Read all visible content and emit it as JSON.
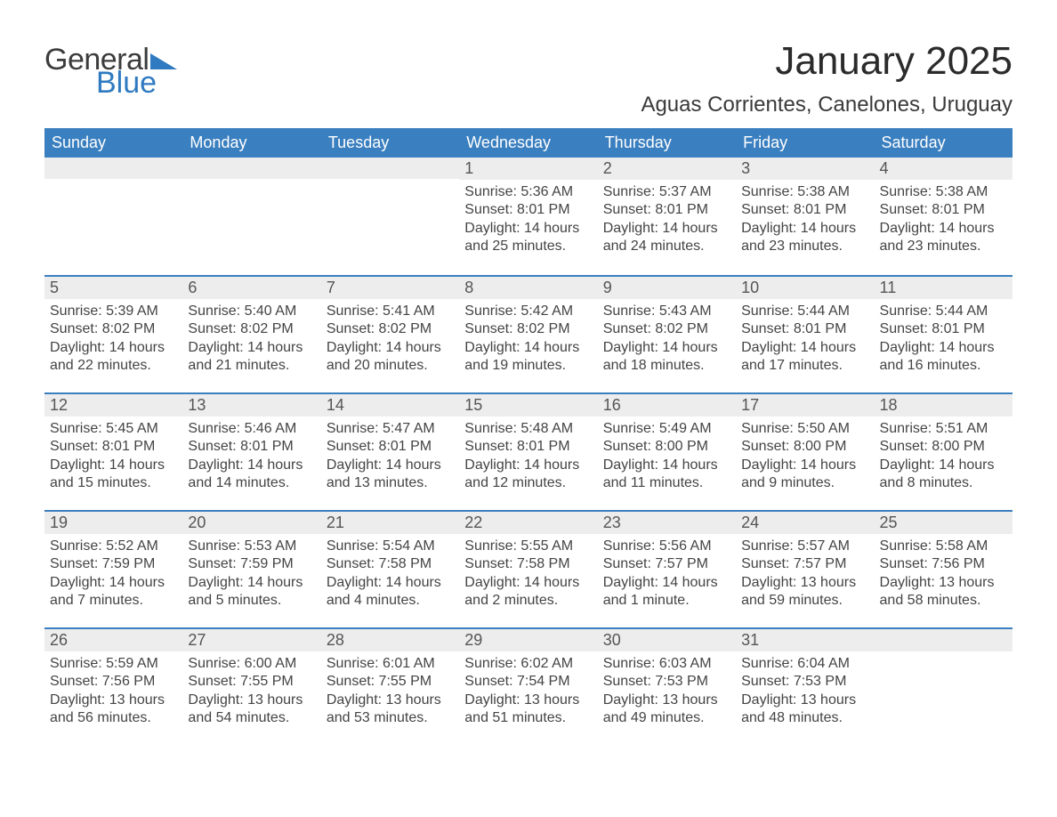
{
  "logo": {
    "word1": "General",
    "word2": "Blue"
  },
  "header": {
    "month_title": "January 2025",
    "location": "Aguas Corrientes, Canelones, Uruguay"
  },
  "colors": {
    "brand_blue": "#2f7ac0",
    "header_blue": "#3a7fbf",
    "row_gray": "#ededed",
    "border_blue": "#3a7fbf",
    "background": "#ffffff",
    "text_dark": "#333333"
  },
  "typography": {
    "month_title_fontsize": 44,
    "location_fontsize": 24,
    "dayhead_fontsize": 18,
    "daynum_fontsize": 18,
    "body_fontsize": 16,
    "font_family": "Arial"
  },
  "calendar": {
    "day_headers": [
      "Sunday",
      "Monday",
      "Tuesday",
      "Wednesday",
      "Thursday",
      "Friday",
      "Saturday"
    ],
    "weeks": [
      [
        null,
        null,
        null,
        {
          "num": "1",
          "sunrise": "Sunrise: 5:36 AM",
          "sunset": "Sunset: 8:01 PM",
          "daylight": "Daylight: 14 hours and 25 minutes."
        },
        {
          "num": "2",
          "sunrise": "Sunrise: 5:37 AM",
          "sunset": "Sunset: 8:01 PM",
          "daylight": "Daylight: 14 hours and 24 minutes."
        },
        {
          "num": "3",
          "sunrise": "Sunrise: 5:38 AM",
          "sunset": "Sunset: 8:01 PM",
          "daylight": "Daylight: 14 hours and 23 minutes."
        },
        {
          "num": "4",
          "sunrise": "Sunrise: 5:38 AM",
          "sunset": "Sunset: 8:01 PM",
          "daylight": "Daylight: 14 hours and 23 minutes."
        }
      ],
      [
        {
          "num": "5",
          "sunrise": "Sunrise: 5:39 AM",
          "sunset": "Sunset: 8:02 PM",
          "daylight": "Daylight: 14 hours and 22 minutes."
        },
        {
          "num": "6",
          "sunrise": "Sunrise: 5:40 AM",
          "sunset": "Sunset: 8:02 PM",
          "daylight": "Daylight: 14 hours and 21 minutes."
        },
        {
          "num": "7",
          "sunrise": "Sunrise: 5:41 AM",
          "sunset": "Sunset: 8:02 PM",
          "daylight": "Daylight: 14 hours and 20 minutes."
        },
        {
          "num": "8",
          "sunrise": "Sunrise: 5:42 AM",
          "sunset": "Sunset: 8:02 PM",
          "daylight": "Daylight: 14 hours and 19 minutes."
        },
        {
          "num": "9",
          "sunrise": "Sunrise: 5:43 AM",
          "sunset": "Sunset: 8:02 PM",
          "daylight": "Daylight: 14 hours and 18 minutes."
        },
        {
          "num": "10",
          "sunrise": "Sunrise: 5:44 AM",
          "sunset": "Sunset: 8:01 PM",
          "daylight": "Daylight: 14 hours and 17 minutes."
        },
        {
          "num": "11",
          "sunrise": "Sunrise: 5:44 AM",
          "sunset": "Sunset: 8:01 PM",
          "daylight": "Daylight: 14 hours and 16 minutes."
        }
      ],
      [
        {
          "num": "12",
          "sunrise": "Sunrise: 5:45 AM",
          "sunset": "Sunset: 8:01 PM",
          "daylight": "Daylight: 14 hours and 15 minutes."
        },
        {
          "num": "13",
          "sunrise": "Sunrise: 5:46 AM",
          "sunset": "Sunset: 8:01 PM",
          "daylight": "Daylight: 14 hours and 14 minutes."
        },
        {
          "num": "14",
          "sunrise": "Sunrise: 5:47 AM",
          "sunset": "Sunset: 8:01 PM",
          "daylight": "Daylight: 14 hours and 13 minutes."
        },
        {
          "num": "15",
          "sunrise": "Sunrise: 5:48 AM",
          "sunset": "Sunset: 8:01 PM",
          "daylight": "Daylight: 14 hours and 12 minutes."
        },
        {
          "num": "16",
          "sunrise": "Sunrise: 5:49 AM",
          "sunset": "Sunset: 8:00 PM",
          "daylight": "Daylight: 14 hours and 11 minutes."
        },
        {
          "num": "17",
          "sunrise": "Sunrise: 5:50 AM",
          "sunset": "Sunset: 8:00 PM",
          "daylight": "Daylight: 14 hours and 9 minutes."
        },
        {
          "num": "18",
          "sunrise": "Sunrise: 5:51 AM",
          "sunset": "Sunset: 8:00 PM",
          "daylight": "Daylight: 14 hours and 8 minutes."
        }
      ],
      [
        {
          "num": "19",
          "sunrise": "Sunrise: 5:52 AM",
          "sunset": "Sunset: 7:59 PM",
          "daylight": "Daylight: 14 hours and 7 minutes."
        },
        {
          "num": "20",
          "sunrise": "Sunrise: 5:53 AM",
          "sunset": "Sunset: 7:59 PM",
          "daylight": "Daylight: 14 hours and 5 minutes."
        },
        {
          "num": "21",
          "sunrise": "Sunrise: 5:54 AM",
          "sunset": "Sunset: 7:58 PM",
          "daylight": "Daylight: 14 hours and 4 minutes."
        },
        {
          "num": "22",
          "sunrise": "Sunrise: 5:55 AM",
          "sunset": "Sunset: 7:58 PM",
          "daylight": "Daylight: 14 hours and 2 minutes."
        },
        {
          "num": "23",
          "sunrise": "Sunrise: 5:56 AM",
          "sunset": "Sunset: 7:57 PM",
          "daylight": "Daylight: 14 hours and 1 minute."
        },
        {
          "num": "24",
          "sunrise": "Sunrise: 5:57 AM",
          "sunset": "Sunset: 7:57 PM",
          "daylight": "Daylight: 13 hours and 59 minutes."
        },
        {
          "num": "25",
          "sunrise": "Sunrise: 5:58 AM",
          "sunset": "Sunset: 7:56 PM",
          "daylight": "Daylight: 13 hours and 58 minutes."
        }
      ],
      [
        {
          "num": "26",
          "sunrise": "Sunrise: 5:59 AM",
          "sunset": "Sunset: 7:56 PM",
          "daylight": "Daylight: 13 hours and 56 minutes."
        },
        {
          "num": "27",
          "sunrise": "Sunrise: 6:00 AM",
          "sunset": "Sunset: 7:55 PM",
          "daylight": "Daylight: 13 hours and 54 minutes."
        },
        {
          "num": "28",
          "sunrise": "Sunrise: 6:01 AM",
          "sunset": "Sunset: 7:55 PM",
          "daylight": "Daylight: 13 hours and 53 minutes."
        },
        {
          "num": "29",
          "sunrise": "Sunrise: 6:02 AM",
          "sunset": "Sunset: 7:54 PM",
          "daylight": "Daylight: 13 hours and 51 minutes."
        },
        {
          "num": "30",
          "sunrise": "Sunrise: 6:03 AM",
          "sunset": "Sunset: 7:53 PM",
          "daylight": "Daylight: 13 hours and 49 minutes."
        },
        {
          "num": "31",
          "sunrise": "Sunrise: 6:04 AM",
          "sunset": "Sunset: 7:53 PM",
          "daylight": "Daylight: 13 hours and 48 minutes."
        },
        null
      ]
    ]
  }
}
